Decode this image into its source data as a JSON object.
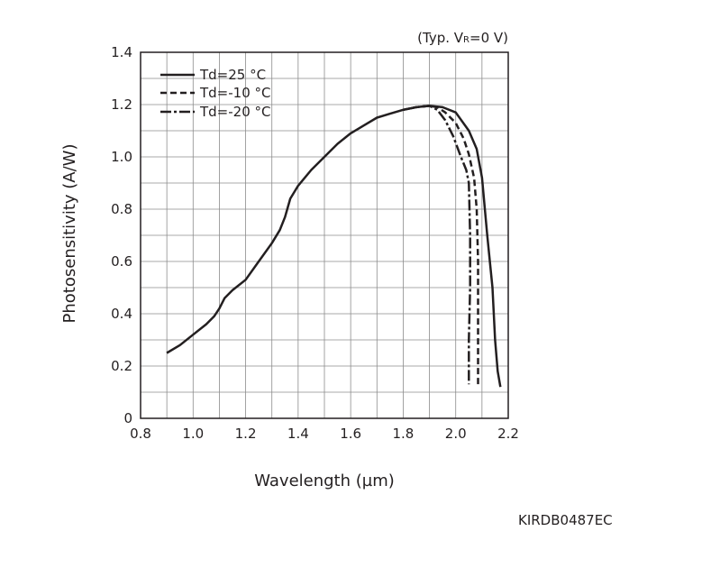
{
  "chart_data": {
    "type": "line",
    "title": "",
    "condition": {
      "prefix": "(Typ. V",
      "subscript": "R",
      "suffix": "=0 V)"
    },
    "xlabel": "Wavelength (µm)",
    "ylabel": "Photosensitivity (A/W)",
    "xlim": [
      0.8,
      2.2
    ],
    "ylim": [
      0,
      1.4
    ],
    "x_ticks": [
      0.8,
      1.0,
      1.2,
      1.4,
      1.6,
      1.8,
      2.0,
      2.2
    ],
    "x_tick_labels": [
      "0.8",
      "1.0",
      "1.2",
      "1.4",
      "1.6",
      "1.8",
      "2.0",
      "2.2"
    ],
    "y_ticks": [
      0,
      0.2,
      0.4,
      0.6,
      0.8,
      1.0,
      1.2,
      1.4
    ],
    "y_tick_labels": [
      "0",
      "0.2",
      "0.4",
      "0.6",
      "0.8",
      "1.0",
      "1.2",
      "1.4"
    ],
    "grid": true,
    "legend_position": "top-left",
    "series": [
      {
        "name": "Td=25 °C",
        "style": "solid",
        "points": [
          [
            0.9,
            0.25
          ],
          [
            0.95,
            0.28
          ],
          [
            1.0,
            0.32
          ],
          [
            1.05,
            0.36
          ],
          [
            1.08,
            0.39
          ],
          [
            1.1,
            0.42
          ],
          [
            1.12,
            0.46
          ],
          [
            1.15,
            0.49
          ],
          [
            1.2,
            0.53
          ],
          [
            1.25,
            0.6
          ],
          [
            1.3,
            0.67
          ],
          [
            1.33,
            0.72
          ],
          [
            1.35,
            0.77
          ],
          [
            1.37,
            0.84
          ],
          [
            1.4,
            0.89
          ],
          [
            1.45,
            0.95
          ],
          [
            1.5,
            1.0
          ],
          [
            1.55,
            1.05
          ],
          [
            1.6,
            1.09
          ],
          [
            1.65,
            1.12
          ],
          [
            1.7,
            1.15
          ],
          [
            1.75,
            1.165
          ],
          [
            1.8,
            1.18
          ],
          [
            1.85,
            1.19
          ],
          [
            1.9,
            1.195
          ],
          [
            1.95,
            1.19
          ],
          [
            2.0,
            1.17
          ],
          [
            2.05,
            1.1
          ],
          [
            2.08,
            1.03
          ],
          [
            2.1,
            0.92
          ],
          [
            2.12,
            0.7
          ],
          [
            2.14,
            0.5
          ],
          [
            2.15,
            0.3
          ],
          [
            2.16,
            0.18
          ],
          [
            2.17,
            0.12
          ]
        ]
      },
      {
        "name": "Td=-10 °C",
        "style": "dashed",
        "points": [
          [
            1.8,
            1.18
          ],
          [
            1.85,
            1.19
          ],
          [
            1.9,
            1.195
          ],
          [
            1.93,
            1.19
          ],
          [
            1.96,
            1.17
          ],
          [
            2.0,
            1.13
          ],
          [
            2.03,
            1.07
          ],
          [
            2.05,
            1.01
          ],
          [
            2.07,
            0.92
          ],
          [
            2.08,
            0.8
          ],
          [
            2.085,
            0.6
          ],
          [
            2.085,
            0.4
          ],
          [
            2.085,
            0.2
          ],
          [
            2.085,
            0.12
          ]
        ]
      },
      {
        "name": "Td=-20 °C",
        "style": "dashdot",
        "points": [
          [
            1.8,
            1.18
          ],
          [
            1.85,
            1.19
          ],
          [
            1.9,
            1.195
          ],
          [
            1.93,
            1.18
          ],
          [
            1.96,
            1.14
          ],
          [
            1.99,
            1.08
          ],
          [
            2.02,
            1.0
          ],
          [
            2.04,
            0.95
          ],
          [
            2.05,
            0.9
          ],
          [
            2.055,
            0.7
          ],
          [
            2.055,
            0.5
          ],
          [
            2.05,
            0.3
          ],
          [
            2.05,
            0.13
          ]
        ]
      }
    ]
  },
  "figure_code": "KIRDB0487EC"
}
